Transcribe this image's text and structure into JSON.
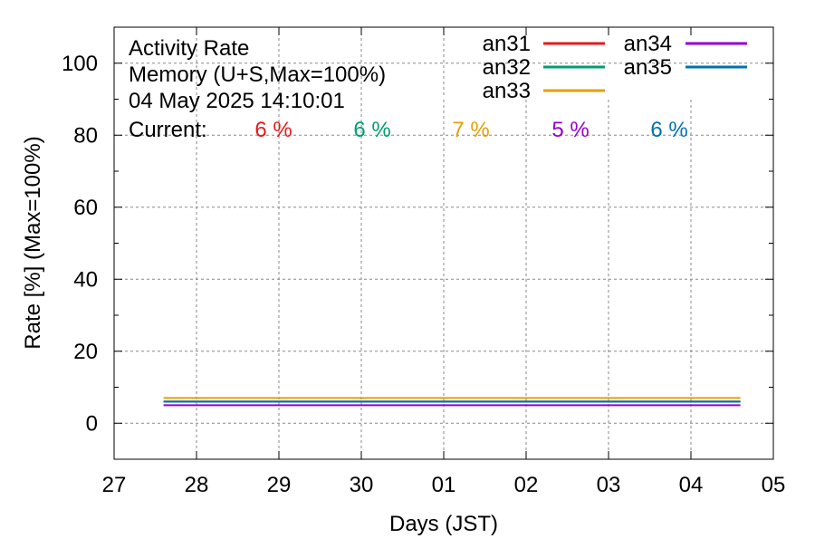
{
  "chart_data": {
    "type": "line",
    "title_lines": [
      "Activity Rate",
      "Memory (U+S,Max=100%)",
      "04 May 2025 14:10:01"
    ],
    "current_label": "Current:",
    "xlabel": "Days (JST)",
    "ylabel": "Rate [%]  (Max=100%)",
    "x_tick_labels": [
      "27",
      "28",
      "29",
      "30",
      "01",
      "02",
      "03",
      "04",
      "05"
    ],
    "y_ticks": [
      0,
      20,
      40,
      60,
      80,
      100
    ],
    "ylim": [
      -10,
      110
    ],
    "x_range_days": [
      0,
      8
    ],
    "grid": true,
    "legend_position": "top-right",
    "series": [
      {
        "name": "an31",
        "color": "#e41a1c",
        "current": "6 %",
        "x": [
          0.6,
          7.6
        ],
        "y": [
          6,
          6
        ]
      },
      {
        "name": "an32",
        "color": "#009e73",
        "current": "6 %",
        "x": [
          0.6,
          7.6
        ],
        "y": [
          6,
          6
        ]
      },
      {
        "name": "an33",
        "color": "#e69f00",
        "current": "7 %",
        "x": [
          0.6,
          7.6
        ],
        "y": [
          7,
          7
        ]
      },
      {
        "name": "an34",
        "color": "#9400d3",
        "current": "5 %",
        "x": [
          0.6,
          7.6
        ],
        "y": [
          5,
          5
        ]
      },
      {
        "name": "an35",
        "color": "#0072b2",
        "current": "6 %",
        "x": [
          0.6,
          7.6
        ],
        "y": [
          6,
          6
        ]
      }
    ]
  }
}
